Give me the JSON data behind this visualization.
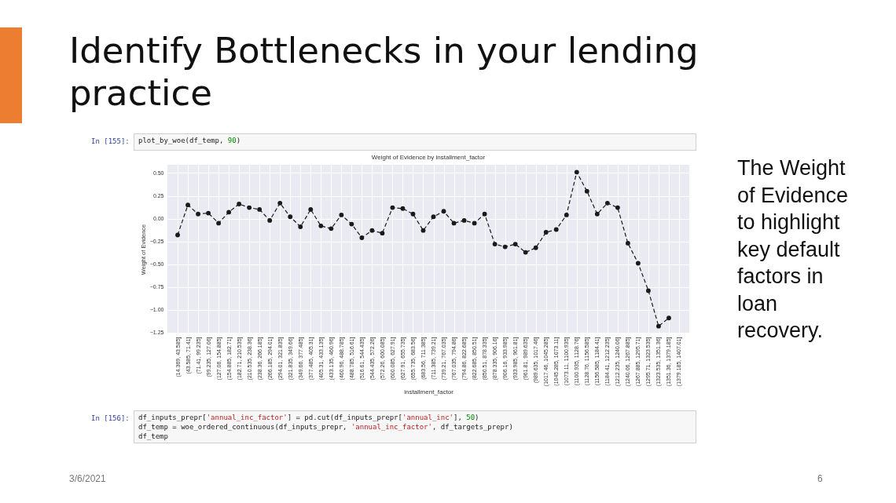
{
  "chart_data": {
    "type": "line",
    "title": "Weight of Evidence by installment_factor",
    "xlabel": "installment_factor",
    "ylabel": "Weight of Evidence",
    "categories": [
      "(14.369, 43.585]",
      "(43.585, 71.41]",
      "(71.41, 99.235]",
      "(99.235, 127.06]",
      "(127.06, 154.885]",
      "(154.885, 182.71]",
      "(182.71, 210.535]",
      "(210.535, 238.36]",
      "(238.36, 266.185]",
      "(266.185, 294.01]",
      "(294.01, 321.835]",
      "(321.835, 349.66]",
      "(349.66, 377.485]",
      "(377.485, 405.31]",
      "(405.31, 433.135]",
      "(433.135, 460.96]",
      "(460.96, 488.785]",
      "(488.785, 516.61]",
      "(516.61, 544.435]",
      "(544.435, 572.26]",
      "(572.26, 600.085]",
      "(600.085, 627.91]",
      "(627.91, 655.735]",
      "(655.735, 683.56]",
      "(683.56, 711.385]",
      "(711.385, 739.21]",
      "(739.21, 767.035]",
      "(767.035, 794.86]",
      "(794.86, 822.685]",
      "(822.685, 850.51]",
      "(850.51, 878.335]",
      "(878.335, 906.16]",
      "(906.16, 933.985]",
      "(933.985, 961.81]",
      "(961.81, 989.635]",
      "(989.635, 1017.46]",
      "(1017.46, 1045.285]",
      "(1045.285, 1073.11]",
      "(1073.11, 1100.935]",
      "(1100.935, 1128.76]",
      "(1128.76, 1156.585]",
      "(1156.585, 1184.41]",
      "(1184.41, 1212.235]",
      "(1212.235, 1240.06]",
      "(1240.06, 1267.885]",
      "(1267.885, 1295.71]",
      "(1295.71, 1323.535]",
      "(1323.535, 1351.36]",
      "(1351.36, 1379.185]",
      "(1379.185, 1407.01]"
    ],
    "series": [
      {
        "color": "#1a1a1a",
        "values": [
          -0.18,
          0.15,
          0.05,
          0.06,
          -0.05,
          0.07,
          0.16,
          0.12,
          0.1,
          -0.02,
          0.17,
          0.02,
          -0.09,
          0.1,
          -0.08,
          -0.11,
          0.04,
          -0.06,
          -0.21,
          -0.13,
          -0.16,
          0.12,
          0.11,
          0.05,
          -0.13,
          0.02,
          0.08,
          -0.05,
          -0.02,
          -0.05,
          0.05,
          -0.28,
          -0.31,
          -0.28,
          -0.37,
          -0.32,
          -0.15,
          -0.12,
          0.04,
          0.51,
          0.3,
          0.05,
          0.17,
          0.12,
          -0.27,
          -0.49,
          -0.79,
          -1.18,
          -1.09,
          null
        ]
      }
    ],
    "ylim": [
      -1.26,
      0.59
    ],
    "yticks": [
      {
        "value": -1.25,
        "label": "−1.25"
      },
      {
        "value": -1.0,
        "label": "−1.00"
      },
      {
        "value": -0.75,
        "label": "−0.75"
      },
      {
        "value": -0.5,
        "label": "−0.50"
      },
      {
        "value": -0.25,
        "label": "−0.25"
      },
      {
        "value": 0,
        "label": "0.00"
      },
      {
        "value": 0.25,
        "label": "0.25"
      },
      {
        "value": 0.5,
        "label": "0.50"
      }
    ],
    "grid": true,
    "marker": "circle",
    "line_style": "dashed",
    "annotations": [
      "Identify Bottlenecks in your lending practice",
      "In [155]:",
      "plot_by_woe(df_temp, 90)",
      "The Weight of Evidence to highlight key default factors in loan recovery.",
      "In [156]:",
      "df_inputs_prepr['annual_inc_factor'] = pd.cut(df_inputs_prepr['annual_inc'], 50)\ndf_temp = woe_ordered_continuous(df_inputs_prepr, 'annual_inc_factor', df_targets_prepr)\ndf_temp",
      "3/6/2021",
      "6"
    ]
  }
}
